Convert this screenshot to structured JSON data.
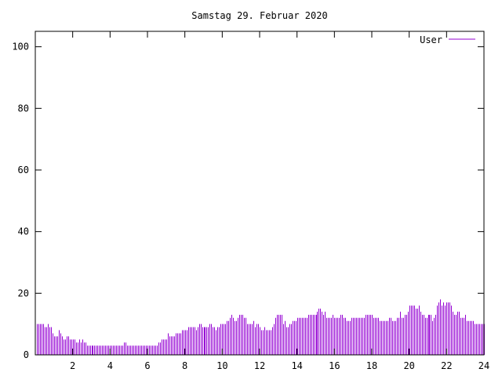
{
  "chart_data": {
    "type": "bar",
    "style": "impulses",
    "title": "Samstag 29. Februar 2020",
    "xlabel": "",
    "ylabel": "",
    "xlim": [
      0,
      24
    ],
    "ylim": [
      0,
      105
    ],
    "x_ticks": [
      2,
      4,
      6,
      8,
      10,
      12,
      14,
      16,
      18,
      20,
      22,
      24
    ],
    "y_ticks": [
      0,
      20,
      40,
      60,
      80,
      100
    ],
    "grid": false,
    "legend_position": "top-right",
    "x_step_hours": 0.08333,
    "series": [
      {
        "name": "User",
        "color": "#9400d3",
        "values": [
          10,
          10,
          10,
          10,
          10,
          9,
          9,
          10,
          9,
          9,
          7,
          6,
          6,
          6,
          8,
          7,
          6,
          5,
          5,
          6,
          6,
          5,
          5,
          5,
          5,
          4,
          4,
          5,
          4,
          5,
          4,
          4,
          3,
          3,
          3,
          3,
          3,
          3,
          3,
          3,
          3,
          3,
          3,
          3,
          3,
          3,
          3,
          3,
          3,
          3,
          3,
          3,
          3,
          3,
          3,
          3,
          4,
          4,
          3,
          3,
          3,
          3,
          3,
          3,
          3,
          3,
          3,
          3,
          3,
          3,
          3,
          3,
          3,
          3,
          3,
          3,
          3,
          3,
          4,
          4,
          5,
          5,
          5,
          5,
          7,
          6,
          6,
          6,
          6,
          7,
          7,
          7,
          7,
          8,
          8,
          8,
          8,
          9,
          9,
          9,
          9,
          9,
          8,
          9,
          10,
          10,
          9,
          9,
          9,
          9,
          9,
          10,
          10,
          9,
          9,
          8,
          9,
          9,
          10,
          10,
          10,
          10,
          11,
          11,
          12,
          13,
          12,
          11,
          11,
          12,
          13,
          13,
          13,
          12,
          12,
          10,
          10,
          10,
          10,
          11,
          9,
          10,
          10,
          9,
          8,
          8,
          9,
          8,
          8,
          8,
          8,
          9,
          10,
          12,
          13,
          13,
          13,
          13,
          10,
          11,
          9,
          9,
          10,
          10,
          11,
          11,
          11,
          12,
          12,
          12,
          12,
          12,
          12,
          12,
          13,
          13,
          13,
          13,
          13,
          13,
          14,
          15,
          15,
          14,
          13,
          14,
          12,
          12,
          12,
          12,
          13,
          12,
          12,
          12,
          12,
          13,
          13,
          12,
          12,
          11,
          11,
          11,
          12,
          12,
          12,
          12,
          12,
          12,
          12,
          12,
          12,
          13,
          13,
          13,
          13,
          13,
          12,
          12,
          12,
          12,
          11,
          11,
          11,
          11,
          11,
          11,
          12,
          12,
          11,
          11,
          11,
          12,
          12,
          14,
          12,
          12,
          13,
          13,
          14,
          16,
          16,
          16,
          16,
          15,
          15,
          16,
          14,
          13,
          13,
          12,
          12,
          13,
          13,
          13,
          11,
          12,
          13,
          16,
          17,
          18,
          16,
          17,
          16,
          17,
          17,
          17,
          16,
          14,
          13,
          13,
          14,
          14,
          12,
          12,
          12,
          13,
          11,
          11,
          11,
          11,
          11,
          10,
          10,
          10,
          10,
          10,
          10,
          10
        ]
      }
    ]
  }
}
